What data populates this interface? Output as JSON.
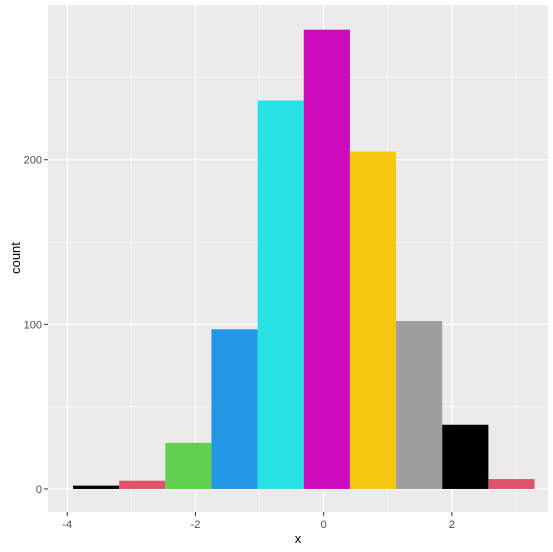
{
  "chart_data": {
    "type": "bar",
    "subtype": "histogram",
    "title": "",
    "xlabel": "x",
    "ylabel": "count",
    "xlim": [
      -4.3,
      3.5
    ],
    "ylim": [
      -14,
      294
    ],
    "x_ticks": [
      -4,
      -2,
      0,
      2
    ],
    "x_tick_labels": [
      "-4",
      "-2",
      "0",
      "2"
    ],
    "y_ticks": [
      0,
      100,
      200
    ],
    "y_tick_labels": [
      "0",
      "100",
      "200"
    ],
    "grid": true,
    "legend": "none",
    "bins": [
      {
        "x_start": -3.91,
        "x_end": -3.19,
        "count": 2,
        "color": "#000000"
      },
      {
        "x_start": -3.19,
        "x_end": -2.47,
        "count": 5,
        "color": "#DF536B"
      },
      {
        "x_start": -2.47,
        "x_end": -1.75,
        "count": 28,
        "color": "#61D04F"
      },
      {
        "x_start": -1.75,
        "x_end": -1.03,
        "count": 97,
        "color": "#2297E6"
      },
      {
        "x_start": -1.03,
        "x_end": -0.31,
        "count": 236,
        "color": "#28E2E5"
      },
      {
        "x_start": -0.31,
        "x_end": 0.41,
        "count": 279,
        "color": "#CD0BBC"
      },
      {
        "x_start": 0.41,
        "x_end": 1.13,
        "count": 205,
        "color": "#F5C710"
      },
      {
        "x_start": 1.13,
        "x_end": 1.85,
        "count": 102,
        "color": "#9E9E9E"
      },
      {
        "x_start": 1.85,
        "x_end": 2.57,
        "count": 39,
        "color": "#000000"
      },
      {
        "x_start": 2.57,
        "x_end": 3.29,
        "count": 6,
        "color": "#DF536B"
      }
    ]
  }
}
